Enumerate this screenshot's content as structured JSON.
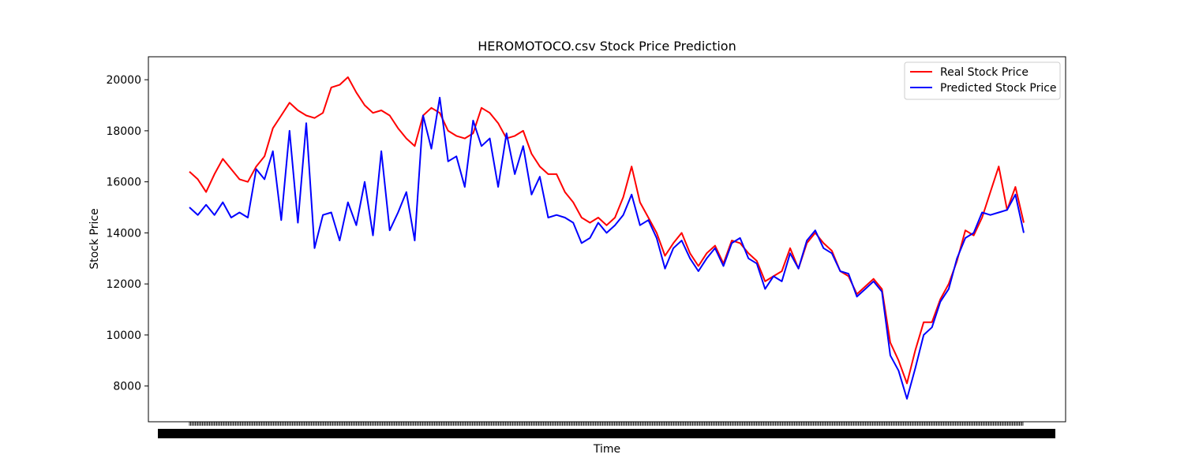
{
  "chart_data": {
    "type": "line",
    "title": "HEROMOTOCO.csv Stock Price Prediction",
    "xlabel": "Time",
    "ylabel": "Stock Price",
    "ylim": [
      6600,
      20900
    ],
    "yticks": [
      8000,
      10000,
      12000,
      14000,
      16000,
      18000,
      20000
    ],
    "grid": false,
    "legend_position": "top-right",
    "x_index_range": [
      0,
      100
    ],
    "series": [
      {
        "name": "Real Stock Price",
        "color": "#ff0000",
        "x": [
          0,
          1,
          2,
          3,
          4,
          5,
          6,
          7,
          8,
          9,
          10,
          11,
          12,
          13,
          14,
          15,
          16,
          17,
          18,
          19,
          20,
          21,
          22,
          23,
          24,
          25,
          26,
          27,
          28,
          29,
          30,
          31,
          32,
          33,
          34,
          35,
          36,
          37,
          38,
          39,
          40,
          41,
          42,
          43,
          44,
          45,
          46,
          47,
          48,
          49,
          50,
          51,
          52,
          53,
          54,
          55,
          56,
          57,
          58,
          59,
          60,
          61,
          62,
          63,
          64,
          65,
          66,
          67,
          68,
          69,
          70,
          71,
          72,
          73,
          74,
          75,
          76,
          77,
          78,
          79,
          80,
          81,
          82,
          83,
          84,
          85,
          86,
          87,
          88,
          89,
          90,
          91,
          92,
          93,
          94,
          95,
          96,
          97,
          98,
          99,
          100
        ],
        "y": [
          16400,
          16100,
          15600,
          16300,
          16900,
          16500,
          16100,
          16000,
          16600,
          17000,
          18100,
          18600,
          19100,
          18800,
          18600,
          18500,
          18700,
          19700,
          19800,
          20100,
          19500,
          19000,
          18700,
          18800,
          18600,
          18100,
          17700,
          17400,
          18600,
          18900,
          18700,
          18000,
          17800,
          17700,
          17900,
          18900,
          18700,
          18300,
          17700,
          17800,
          18000,
          17100,
          16600,
          16300,
          16300,
          15600,
          15200,
          14600,
          14400,
          14600,
          14300,
          14600,
          15400,
          16600,
          15200,
          14600,
          14000,
          13100,
          13600,
          14000,
          13200,
          12700,
          13200,
          13500,
          12800,
          13700,
          13600,
          13200,
          12900,
          12100,
          12300,
          12500,
          13400,
          12600,
          13600,
          14000,
          13600,
          13300,
          12500,
          12300,
          11600,
          11900,
          12200,
          11800,
          9700,
          9000,
          8100,
          9400,
          10500,
          10500,
          11400,
          12000,
          12900,
          14100,
          13900,
          14600,
          15600,
          16600,
          14900,
          15800,
          14400
        ]
      },
      {
        "name": "Predicted Stock Price",
        "color": "#0000ff",
        "x": [
          0,
          1,
          2,
          3,
          4,
          5,
          6,
          7,
          8,
          9,
          10,
          11,
          12,
          13,
          14,
          15,
          16,
          17,
          18,
          19,
          20,
          21,
          22,
          23,
          24,
          25,
          26,
          27,
          28,
          29,
          30,
          31,
          32,
          33,
          34,
          35,
          36,
          37,
          38,
          39,
          40,
          41,
          42,
          43,
          44,
          45,
          46,
          47,
          48,
          49,
          50,
          51,
          52,
          53,
          54,
          55,
          56,
          57,
          58,
          59,
          60,
          61,
          62,
          63,
          64,
          65,
          66,
          67,
          68,
          69,
          70,
          71,
          72,
          73,
          74,
          75,
          76,
          77,
          78,
          79,
          80,
          81,
          82,
          83,
          84,
          85,
          86,
          87,
          88,
          89,
          90,
          91,
          92,
          93,
          94,
          95,
          96,
          97,
          98,
          99,
          100
        ],
        "y": [
          15000,
          14700,
          15100,
          14700,
          15200,
          14600,
          14800,
          14600,
          16500,
          16100,
          17200,
          14500,
          18000,
          14400,
          18300,
          13400,
          14700,
          14800,
          13700,
          15200,
          14300,
          16000,
          13900,
          17200,
          14100,
          14800,
          15600,
          13700,
          18600,
          17300,
          19300,
          16800,
          17000,
          15800,
          18400,
          17400,
          17700,
          15800,
          17900,
          16300,
          17400,
          15500,
          16200,
          14600,
          14700,
          14600,
          14400,
          13600,
          13800,
          14400,
          14000,
          14300,
          14700,
          15500,
          14300,
          14500,
          13800,
          12600,
          13400,
          13700,
          13000,
          12500,
          13000,
          13400,
          12700,
          13600,
          13800,
          13000,
          12800,
          11800,
          12300,
          12100,
          13200,
          12600,
          13700,
          14100,
          13400,
          13200,
          12500,
          12400,
          11500,
          11800,
          12100,
          11700,
          9200,
          8600,
          7500,
          8700,
          10000,
          10300,
          11300,
          11800,
          13000,
          13800,
          14000,
          14800,
          14700,
          14800,
          14900,
          15500,
          14000
        ]
      }
    ]
  }
}
